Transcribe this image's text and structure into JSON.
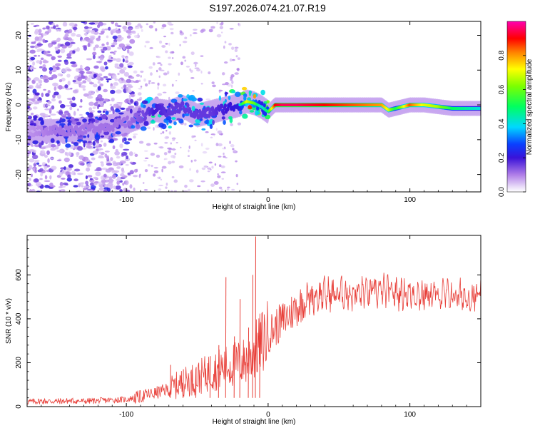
{
  "title": "S197.2026.074.21.07.R19",
  "chart_data": [
    {
      "type": "heatmap",
      "xlabel": "Height of straight line (km)",
      "ylabel": "Frequency (Hz)",
      "xlim": [
        -170,
        150
      ],
      "ylim": [
        -25,
        24
      ],
      "xticks": [
        -100,
        0,
        100
      ],
      "xtick_labels": [
        "-100",
        "0",
        "100"
      ],
      "yticks": [
        20,
        10,
        0,
        -10,
        -20
      ],
      "ytick_labels": [
        "20",
        "10",
        "0",
        "-10",
        "-20"
      ],
      "colorbar": {
        "label": "Normalized spectral amplitude",
        "range": [
          0,
          1
        ],
        "ticks": [
          0.0,
          0.2,
          0.4,
          0.6,
          0.8
        ],
        "tick_labels": [
          "0.0",
          "0.2",
          "0.4",
          "0.6",
          "0.8"
        ]
      },
      "ridge": {
        "x": [
          -170,
          -150,
          -130,
          -110,
          -100,
          -90,
          -80,
          -70,
          -60,
          -50,
          -40,
          -30,
          -20,
          -15,
          -10,
          -5,
          0,
          5,
          10,
          20,
          40,
          60,
          80,
          85,
          90,
          100,
          110,
          120,
          130,
          140,
          150
        ],
        "freq": [
          -7.5,
          -7.5,
          -7,
          -6,
          -5,
          -3.5,
          -1.5,
          -2,
          -0.5,
          -3,
          -2,
          -1,
          0,
          1,
          0.5,
          -0.5,
          -2,
          0,
          0,
          0,
          0,
          0,
          0,
          -1.5,
          -1,
          0,
          0,
          -0.5,
          -1,
          -1,
          -1
        ],
        "amplitude": [
          0.15,
          0.2,
          0.2,
          0.2,
          0.2,
          0.25,
          0.35,
          0.3,
          0.3,
          0.3,
          0.3,
          0.35,
          0.4,
          0.7,
          0.6,
          0.4,
          0.5,
          0.9,
          0.95,
          0.95,
          0.9,
          0.85,
          0.8,
          0.7,
          0.5,
          0.85,
          0.7,
          0.65,
          0.5,
          0.45,
          0.4
        ]
      }
    },
    {
      "type": "line",
      "xlabel": "Height of straight line (km)",
      "ylabel": "SNR (10 * v/v)",
      "xlim": [
        -170,
        150
      ],
      "ylim": [
        0,
        780
      ],
      "xticks": [
        -100,
        0,
        100
      ],
      "xtick_labels": [
        "-100",
        "0",
        "100"
      ],
      "yticks": [
        0,
        200,
        400,
        600
      ],
      "ytick_labels": [
        "0",
        "200",
        "400",
        "600"
      ],
      "series": [
        {
          "name": "SNR",
          "color": "#e8403a",
          "x": [
            -170,
            -160,
            -150,
            -140,
            -130,
            -120,
            -110,
            -100,
            -95,
            -90,
            -85,
            -80,
            -75,
            -70,
            -65,
            -60,
            -55,
            -50,
            -45,
            -40,
            -35,
            -30,
            -25,
            -20,
            -15,
            -10,
            -5,
            0,
            5,
            10,
            15,
            20,
            25,
            30,
            40,
            50,
            60,
            70,
            80,
            90,
            100,
            110,
            120,
            130,
            140,
            150
          ],
          "values": [
            22,
            25,
            24,
            26,
            25,
            27,
            30,
            32,
            40,
            45,
            55,
            60,
            70,
            80,
            95,
            110,
            120,
            130,
            145,
            160,
            170,
            180,
            190,
            200,
            210,
            250,
            290,
            330,
            360,
            390,
            420,
            450,
            480,
            500,
            510,
            515,
            515,
            520,
            525,
            520,
            515,
            510,
            505,
            505,
            500,
            500
          ]
        }
      ],
      "spikes": [
        {
          "x": -69,
          "value": 190
        },
        {
          "x": -60,
          "value": 170
        },
        {
          "x": -51,
          "value": 180
        },
        {
          "x": -41,
          "value": 230
        },
        {
          "x": -35,
          "value": 280
        },
        {
          "x": -30,
          "value": 590
        },
        {
          "x": -24,
          "value": 320
        },
        {
          "x": -20,
          "value": 490
        },
        {
          "x": -14,
          "value": 360
        },
        {
          "x": -11,
          "value": 600
        },
        {
          "x": -9,
          "value": 775
        },
        {
          "x": -6,
          "value": 380
        }
      ]
    }
  ]
}
